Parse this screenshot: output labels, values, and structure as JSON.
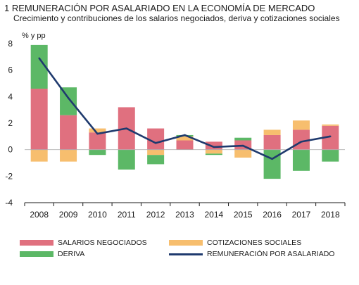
{
  "title": "1  REMUNERACIÓN POR ASALARIADO EN LA ECONOMÍA DE MERCADO",
  "subtitle": "Crecimiento y contribuciones de los salarios negociados, deriva y cotizaciones sociales",
  "unit": "% y pp",
  "colors": {
    "salarios": "#e0707f",
    "cotizaciones": "#f7be6e",
    "deriva": "#5cb866",
    "remuneracion": "#1f3a6e"
  },
  "legend": {
    "salarios": "SALARIOS NEGOCIADOS",
    "cotizaciones": "COTIZACIONES SOCIALES",
    "deriva": "DERIVA",
    "remuneracion": "REMUNERACIÓN POR ASALARIADO"
  },
  "chart_data": {
    "type": "bar",
    "stacked": true,
    "categories": [
      "2008",
      "2009",
      "2010",
      "2011",
      "2012",
      "2013",
      "2014",
      "2015",
      "2016",
      "2017",
      "2018"
    ],
    "ylim": [
      -4,
      8
    ],
    "yticks": [
      -4,
      -2,
      0,
      2,
      4,
      6,
      8
    ],
    "grid": false,
    "series": [
      {
        "name": "SALARIOS NEGOCIADOS",
        "kind": "bar",
        "values": [
          4.6,
          2.6,
          1.3,
          3.2,
          1.6,
          0.7,
          0.6,
          0.7,
          1.1,
          1.5,
          1.8
        ]
      },
      {
        "name": "COTIZACIONES SOCIALES",
        "kind": "bar",
        "values": [
          -0.9,
          -0.9,
          0.3,
          0.0,
          -0.4,
          0.3,
          -0.3,
          -0.6,
          0.4,
          0.7,
          0.1
        ]
      },
      {
        "name": "DERIVA",
        "kind": "bar",
        "values": [
          3.3,
          2.1,
          -0.4,
          -1.5,
          -0.7,
          0.1,
          -0.1,
          0.2,
          -2.2,
          -1.6,
          -0.9
        ]
      },
      {
        "name": "REMUNERACIÓN POR ASALARIADO",
        "kind": "line",
        "values": [
          6.9,
          3.9,
          1.2,
          1.6,
          0.5,
          1.1,
          0.2,
          0.3,
          -0.7,
          0.6,
          1.0
        ]
      }
    ]
  }
}
